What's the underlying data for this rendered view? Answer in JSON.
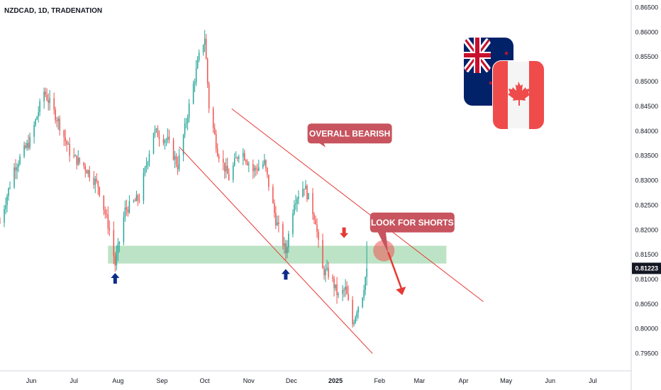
{
  "header": {
    "symbol_line": "NZDCAD, 1D, TRADENATION"
  },
  "colors": {
    "up": "#26a69a",
    "down": "#ef5350",
    "trendline": "#e53935",
    "zone": "#8fd19e",
    "callout": "#c7545e",
    "arrow_up": "#0d2b8a",
    "arrow_down": "#e53935",
    "price_badge": "#131722"
  },
  "chart_data": {
    "type": "candlestick",
    "title": "NZDCAD, 1D, TRADENATION",
    "y_ticks": [
      "0.86500",
      "0.86000",
      "0.85500",
      "0.85000",
      "0.84500",
      "0.84000",
      "0.83500",
      "0.83000",
      "0.82500",
      "0.82000",
      "0.81500",
      "0.81000",
      "0.80500",
      "0.80000",
      "0.79500"
    ],
    "y_tick_values": [
      0.865,
      0.86,
      0.855,
      0.85,
      0.845,
      0.84,
      0.835,
      0.83,
      0.825,
      0.82,
      0.815,
      0.81,
      0.805,
      0.8,
      0.795
    ],
    "ylim": [
      0.7915,
      0.8665
    ],
    "x_ticks": [
      "Jun",
      "Jul",
      "Aug",
      "Sep",
      "Oct",
      "Nov",
      "Dec",
      "2025",
      "Feb",
      "Mar",
      "Apr",
      "May",
      "Jun",
      "Jul"
    ],
    "x_tick_dates": [
      "2024-06-01",
      "2024-07-01",
      "2024-08-01",
      "2024-09-01",
      "2024-10-01",
      "2024-11-01",
      "2024-12-01",
      "2025-01-01",
      "2025-02-01",
      "2025-03-01",
      "2025-04-01",
      "2025-05-01",
      "2025-06-01",
      "2025-07-01"
    ],
    "xlim": [
      "2024-05-10",
      "2025-07-28"
    ],
    "last_price": "0.81223",
    "last_price_value": 0.81223,
    "anchors": [
      {
        "date": "2024-05-10",
        "close": 0.8215
      },
      {
        "date": "2024-05-20",
        "close": 0.8325
      },
      {
        "date": "2024-05-31",
        "close": 0.838
      },
      {
        "date": "2024-06-10",
        "close": 0.848
      },
      {
        "date": "2024-06-20",
        "close": 0.842
      },
      {
        "date": "2024-06-29",
        "close": 0.835
      },
      {
        "date": "2024-07-08",
        "close": 0.833
      },
      {
        "date": "2024-07-18",
        "close": 0.829
      },
      {
        "date": "2024-07-26",
        "close": 0.82
      },
      {
        "date": "2024-07-30",
        "close": 0.813
      },
      {
        "date": "2024-08-06",
        "close": 0.824
      },
      {
        "date": "2024-08-16",
        "close": 0.8265
      },
      {
        "date": "2024-08-26",
        "close": 0.84
      },
      {
        "date": "2024-09-05",
        "close": 0.838
      },
      {
        "date": "2024-09-12",
        "close": 0.833
      },
      {
        "date": "2024-09-20",
        "close": 0.845
      },
      {
        "date": "2024-09-27",
        "close": 0.855
      },
      {
        "date": "2024-10-01",
        "close": 0.859
      },
      {
        "date": "2024-10-04",
        "close": 0.845
      },
      {
        "date": "2024-10-10",
        "close": 0.836
      },
      {
        "date": "2024-10-18",
        "close": 0.8305
      },
      {
        "date": "2024-10-26",
        "close": 0.8365
      },
      {
        "date": "2024-11-04",
        "close": 0.832
      },
      {
        "date": "2024-11-12",
        "close": 0.8335
      },
      {
        "date": "2024-11-20",
        "close": 0.822
      },
      {
        "date": "2024-11-27",
        "close": 0.8155
      },
      {
        "date": "2024-12-03",
        "close": 0.826
      },
      {
        "date": "2024-12-10",
        "close": 0.829
      },
      {
        "date": "2024-12-18",
        "close": 0.822
      },
      {
        "date": "2024-12-22",
        "close": 0.812
      },
      {
        "date": "2024-12-28",
        "close": 0.811
      },
      {
        "date": "2025-01-03",
        "close": 0.8065
      },
      {
        "date": "2025-01-08",
        "close": 0.808
      },
      {
        "date": "2025-01-13",
        "close": 0.801
      },
      {
        "date": "2025-01-16",
        "close": 0.804
      },
      {
        "date": "2025-01-20",
        "close": 0.807
      },
      {
        "date": "2025-01-23",
        "close": 0.8122
      }
    ],
    "support_zone": {
      "low": 0.8132,
      "high": 0.8168,
      "from": "2024-07-25",
      "to": "2025-03-20"
    },
    "trendlines": [
      {
        "name": "upper",
        "from": {
          "date": "2024-10-20",
          "price": 0.8445
        },
        "to": {
          "date": "2025-04-15",
          "price": 0.8055
        }
      },
      {
        "name": "lower",
        "from": {
          "date": "2024-09-13",
          "price": 0.8368
        },
        "to": {
          "date": "2025-01-27",
          "price": 0.795
        }
      }
    ],
    "annotations": [
      {
        "text": "OVERALL BEARISH",
        "date": "2025-01-11",
        "price": 0.8395,
        "pointer": {
          "date": "2024-12-25",
          "price": 0.8367
        }
      },
      {
        "text": "LOOK FOR SHORTS",
        "date": "2025-02-24",
        "price": 0.8215,
        "pointer": {
          "date": "2025-02-07",
          "price": 0.8153
        }
      }
    ],
    "up_arrows": [
      {
        "date": "2024-07-30",
        "price": 0.81
      },
      {
        "date": "2024-11-27",
        "price": 0.8108
      }
    ],
    "down_arrows": [
      {
        "date": "2025-01-07",
        "price": 0.8195
      }
    ],
    "focus_circle": {
      "date": "2025-02-04",
      "price": 0.8158
    },
    "projection": {
      "from": {
        "date": "2025-02-07",
        "price": 0.8155
      },
      "to": {
        "date": "2025-02-17",
        "price": 0.8068
      }
    }
  }
}
